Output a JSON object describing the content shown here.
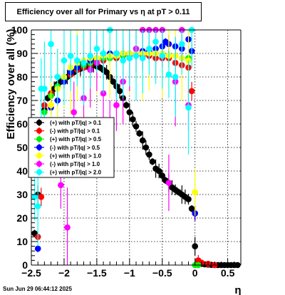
{
  "footer": {
    "timestamp": "Sun Jun 29 06:44:12 2025"
  },
  "chart_data": {
    "type": "scatter",
    "title": "Efficiency over all for Primary vs   η at pT > 0.11",
    "xlabel": "η",
    "ylabel": "Efficiency over all (%)",
    "xlim": [
      -2.5,
      0.7
    ],
    "ylim": [
      0,
      100
    ],
    "xticks": [
      -2.5,
      -2,
      -1.5,
      -1,
      -0.5,
      0,
      0.5
    ],
    "xtick_labels": [
      "−2.5",
      "−2",
      "−1.5",
      "−1",
      "−0.5",
      "0",
      "0.5"
    ],
    "yticks": [
      0,
      10,
      20,
      30,
      40,
      50,
      60,
      70,
      80,
      90,
      100
    ],
    "ytick_labels": [
      "0",
      "10",
      "20",
      "30",
      "40",
      "50",
      "60",
      "70",
      "80",
      "90",
      "100"
    ],
    "grid": true,
    "legend_position": "left-middle",
    "series": [
      {
        "name": "(+) with pT/|q| > 0.1",
        "color": "#000000",
        "x": [
          -2.45,
          -2.4,
          -2.35,
          -2.3,
          -2.25,
          -2.2,
          -2.15,
          -2.1,
          -2.05,
          -2.0,
          -1.95,
          -1.9,
          -1.85,
          -1.8,
          -1.75,
          -1.7,
          -1.65,
          -1.6,
          -1.55,
          -1.5,
          -1.45,
          -1.4,
          -1.35,
          -1.3,
          -1.25,
          -1.2,
          -1.15,
          -1.1,
          -1.05,
          -1.0,
          -0.95,
          -0.9,
          -0.85,
          -0.8,
          -0.75,
          -0.7,
          -0.65,
          -0.6,
          -0.55,
          -0.5,
          -0.45,
          -0.4,
          -0.35,
          -0.3,
          -0.25,
          -0.2,
          -0.15,
          -0.1,
          -0.05,
          0.0,
          0.05,
          0.1,
          0.15,
          0.2,
          0.25,
          0.3,
          0.35,
          0.4,
          0.45,
          0.5,
          0.55,
          0.6,
          0.65
        ],
        "y": [
          13.5,
          30,
          58,
          66,
          71,
          73,
          75,
          77,
          78,
          79,
          80,
          81,
          82,
          83,
          83.5,
          84,
          84.5,
          85,
          85,
          84.5,
          84,
          83,
          82,
          80,
          78,
          76,
          74,
          71,
          68,
          65,
          62,
          59,
          56,
          53,
          50,
          47,
          44,
          41,
          40,
          38,
          36,
          35,
          33,
          32,
          31,
          30,
          29,
          28,
          24,
          8,
          1,
          0.5,
          0.3,
          0.2,
          0.1,
          0,
          0,
          0,
          0,
          0,
          0,
          0,
          0
        ]
      },
      {
        "name": "(-) with pT/|q| > 0.1",
        "color": "#ff0000",
        "x": [
          -2.4,
          -2.35,
          -2.3,
          -2.2,
          -2.1,
          -2.0,
          -1.9,
          -1.8,
          -1.7,
          -1.6,
          -1.5,
          -1.4,
          -1.3,
          -1.2,
          -1.1,
          -1.0,
          -0.9,
          -0.8,
          -0.7,
          -0.6,
          -0.5,
          -0.4,
          -0.3,
          -0.2,
          -0.1,
          -0.05,
          0.0,
          0.05,
          0.1,
          0.2,
          0.3
        ],
        "y": [
          12,
          29,
          68,
          73,
          76,
          79,
          81,
          83,
          84,
          85,
          86,
          87,
          88,
          88,
          89,
          89,
          89,
          89,
          89,
          88,
          88,
          88,
          86,
          85,
          84,
          74,
          22,
          2,
          1,
          0.5,
          0
        ]
      },
      {
        "name": "(+) with pT/|q| > 0.5",
        "color": "#00ee00",
        "x": [
          -2.3,
          -2.2,
          -2.1,
          -2.0,
          -1.9,
          -1.8,
          -1.7,
          -1.6,
          -1.5,
          -1.4,
          -1.3,
          -1.2,
          -1.1,
          -1.0,
          -0.9,
          -0.8,
          -0.7,
          -0.6,
          -0.5,
          -0.4,
          -0.3,
          -0.2,
          -0.1,
          0.0,
          0.05
        ],
        "y": [
          65,
          72,
          76,
          79,
          82,
          84,
          85,
          86,
          87,
          88,
          88,
          89,
          89,
          89,
          90,
          90,
          90,
          90,
          90,
          89,
          89,
          88,
          88,
          0,
          0
        ]
      },
      {
        "name": "(-) with pT/|q| > 0.5",
        "color": "#0000ff",
        "x": [
          -2.4,
          -2.3,
          -2.2,
          -2.1,
          -2.0,
          -1.9,
          -1.8,
          -1.7,
          -1.6,
          -1.5,
          -1.4,
          -1.3,
          -1.2,
          -1.1,
          -1.0,
          -0.9,
          -0.8,
          -0.7,
          -0.6,
          -0.5,
          -0.45,
          -0.4,
          -0.3,
          -0.2,
          -0.1,
          -0.05,
          0.0
        ],
        "y": [
          7,
          60,
          67,
          70,
          78,
          82,
          84,
          86,
          87,
          88,
          89,
          90,
          90,
          90,
          90,
          90,
          91,
          91,
          92,
          93,
          95,
          94,
          93,
          92,
          96,
          91,
          22
        ]
      },
      {
        "name": "(+) with pT/|q| > 1.0",
        "color": "#ffff00",
        "x": [
          -2.2,
          -2.1,
          -2.0,
          -1.9,
          -1.8,
          -1.7,
          -1.6,
          -1.5,
          -1.4,
          -1.3,
          -1.2,
          -1.1,
          -1.0,
          -0.9,
          -0.8,
          -0.7,
          -0.6,
          -0.5,
          -0.4,
          -0.3,
          -0.2,
          -0.1,
          0.0
        ],
        "y": [
          68,
          75,
          80,
          84,
          86,
          87,
          88,
          88,
          89,
          89,
          89,
          90,
          90,
          90,
          90,
          90,
          90,
          90,
          89,
          89,
          88,
          87,
          31
        ]
      },
      {
        "name": "(-) with pT/|q| > 1.0",
        "color": "#ff00ff",
        "x": [
          -2.05,
          -1.95,
          -1.85,
          -1.7,
          -1.6,
          -1.5,
          -1.4,
          -1.3,
          -1.2,
          -1.1,
          -1.0,
          -0.9,
          -0.8,
          -0.7,
          -0.6,
          -0.5,
          -0.4,
          -0.3,
          -0.2,
          -0.1
        ],
        "y": [
          34,
          16,
          65,
          71,
          83,
          86,
          73,
          55,
          68,
          78,
          88,
          92,
          100,
          100,
          100,
          100,
          35,
          78,
          100,
          68
        ]
      },
      {
        "name": "(+) with pT/|q| > 2.0",
        "color": "#00ffff",
        "x": [
          -2.45,
          -2.4,
          -2.35,
          -2.3,
          -2.2,
          -2.1,
          -2.0,
          -1.9,
          -1.8,
          -1.7,
          -1.6,
          -1.5,
          -1.4,
          -1.3,
          -1.2,
          -1.1,
          -1.0,
          -0.9,
          -0.8,
          -0.7,
          -0.6,
          -0.5,
          -0.4,
          -0.3,
          -0.2,
          -0.1,
          -0.05
        ],
        "y": [
          29,
          25,
          75,
          75,
          94,
          80,
          87,
          89,
          87,
          86,
          89,
          92,
          90,
          100,
          90,
          87,
          88,
          89,
          88,
          92,
          95,
          89,
          81,
          80,
          94,
          67,
          100
        ]
      }
    ]
  }
}
